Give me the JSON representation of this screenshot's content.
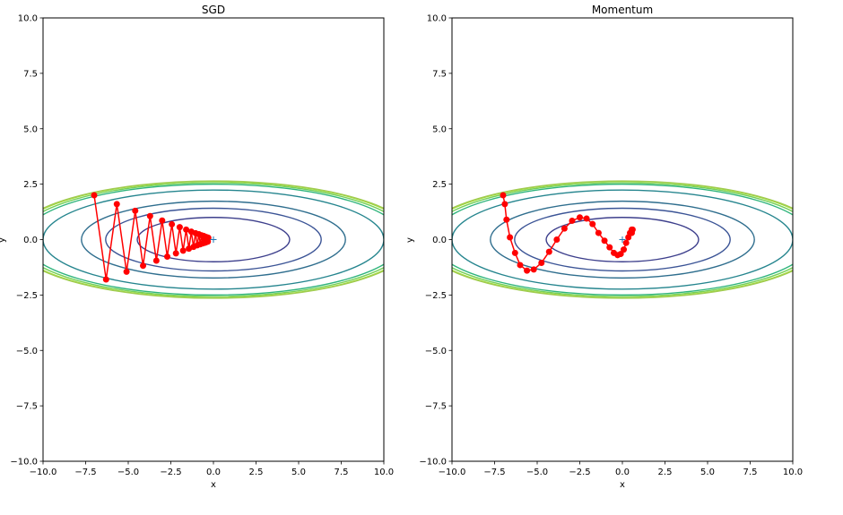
{
  "figure": {
    "background": "#ffffff"
  },
  "chart_data": [
    {
      "type": "line",
      "title": "SGD",
      "xlabel": "x",
      "ylabel": "y",
      "xlim": [
        -10,
        10
      ],
      "ylim": [
        -10,
        10
      ],
      "xticks": [
        -10,
        -7.5,
        -5,
        -2.5,
        0,
        2.5,
        5,
        7.5,
        10
      ],
      "yticks": [
        -10,
        -7.5,
        -5,
        -2.5,
        0,
        2.5,
        5,
        7.5,
        10
      ],
      "xtick_labels": [
        "−10.0",
        "−7.5",
        "−5.0",
        "−2.5",
        "0.0",
        "2.5",
        "5.0",
        "7.5",
        "10.0"
      ],
      "ytick_labels": [
        "−10.0",
        "−7.5",
        "−5.0",
        "−2.5",
        "0.0",
        "2.5",
        "5.0",
        "7.5",
        "10.0"
      ],
      "grid": false,
      "contour": {
        "function": "x^2/20 + y^2",
        "levels": [
          0.05,
          0.1,
          0.3,
          1,
          2,
          3,
          5,
          6.25,
          6.6,
          6.9,
          7
        ],
        "colors": [
          "#ffffff",
          "#ffffff",
          "#ffffff",
          "#3d3f8c",
          "#3b5496",
          "#2f6e8e",
          "#25858e",
          "#2fb47c",
          "#73d056",
          "#a5db36",
          "#9fcb50"
        ]
      },
      "minimum_marker": {
        "x": 0,
        "y": 0,
        "marker": "+"
      },
      "path": {
        "color": "#ff0000",
        "marker": "circle",
        "x": [
          -7.0,
          -6.3,
          -5.67,
          -5.1,
          -4.59,
          -4.13,
          -3.72,
          -3.35,
          -3.01,
          -2.71,
          -2.44,
          -2.2,
          -1.98,
          -1.78,
          -1.6,
          -1.44,
          -1.3,
          -1.17,
          -1.05,
          -0.95,
          -0.85,
          -0.77,
          -0.69,
          -0.62,
          -0.56,
          -0.5,
          -0.45,
          -0.41,
          -0.37,
          -0.33,
          -0.3
        ],
        "y": [
          2.0,
          -1.8,
          1.6,
          -1.45,
          1.3,
          -1.18,
          1.06,
          -0.95,
          0.86,
          -0.77,
          0.69,
          -0.62,
          0.56,
          -0.5,
          0.45,
          -0.41,
          0.36,
          -0.33,
          0.29,
          -0.26,
          0.24,
          -0.21,
          0.19,
          -0.17,
          0.16,
          -0.14,
          0.12,
          -0.11,
          0.1,
          -0.09,
          0.08
        ]
      }
    },
    {
      "type": "line",
      "title": "Momentum",
      "xlabel": "x",
      "ylabel": "y",
      "xlim": [
        -10,
        10
      ],
      "ylim": [
        -10,
        10
      ],
      "xticks": [
        -10,
        -7.5,
        -5,
        -2.5,
        0,
        2.5,
        5,
        7.5,
        10
      ],
      "yticks": [
        -10,
        -7.5,
        -5,
        -2.5,
        0,
        2.5,
        5,
        7.5,
        10
      ],
      "xtick_labels": [
        "−10.0",
        "−7.5",
        "−5.0",
        "−2.5",
        "0.0",
        "2.5",
        "5.0",
        "7.5",
        "10.0"
      ],
      "ytick_labels": [
        "−10.0",
        "−7.5",
        "−5.0",
        "−2.5",
        "0.0",
        "2.5",
        "5.0",
        "7.5",
        "10.0"
      ],
      "grid": false,
      "contour": {
        "function": "x^2/20 + y^2",
        "levels": [
          0.05,
          0.1,
          0.3,
          1,
          2,
          3,
          5,
          6.25,
          6.6,
          6.9,
          7
        ],
        "colors": [
          "#ffffff",
          "#ffffff",
          "#ffffff",
          "#3d3f8c",
          "#3b5496",
          "#2f6e8e",
          "#25858e",
          "#2fb47c",
          "#73d056",
          "#a5db36",
          "#9fcb50"
        ]
      },
      "minimum_marker": {
        "x": 0,
        "y": 0,
        "marker": "+"
      },
      "path": {
        "color": "#ff0000",
        "marker": "circle",
        "x": [
          -7.0,
          -6.9,
          -6.8,
          -6.6,
          -6.3,
          -6.0,
          -5.6,
          -5.2,
          -4.75,
          -4.3,
          -3.85,
          -3.4,
          -2.95,
          -2.5,
          -2.1,
          -1.75,
          -1.4,
          -1.05,
          -0.75,
          -0.5,
          -0.28,
          -0.1,
          0.08,
          0.22,
          0.35,
          0.45,
          0.55,
          0.6,
          0.55
        ],
        "y": [
          2.0,
          1.6,
          0.9,
          0.1,
          -0.6,
          -1.15,
          -1.4,
          -1.35,
          -1.05,
          -0.55,
          0.0,
          0.5,
          0.85,
          1.0,
          0.95,
          0.7,
          0.3,
          -0.05,
          -0.35,
          -0.6,
          -0.7,
          -0.65,
          -0.45,
          -0.15,
          0.1,
          0.3,
          0.45,
          0.45,
          0.3
        ]
      }
    }
  ]
}
